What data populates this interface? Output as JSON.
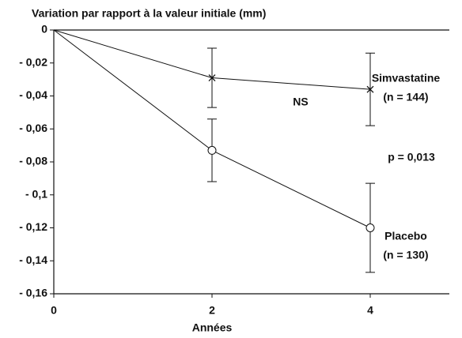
{
  "chart_data": {
    "type": "line",
    "title": "Variation par rapport à la valeur initiale (mm)",
    "x_label": "Années",
    "xlim": [
      0,
      5
    ],
    "xticks": [
      0,
      2,
      4
    ],
    "ylim": [
      -0.16,
      0
    ],
    "yticks": [
      {
        "value": 0,
        "label": "0"
      },
      {
        "value": -0.02,
        "label": "- 0,02"
      },
      {
        "value": -0.04,
        "label": "- 0,04"
      },
      {
        "value": -0.06,
        "label": "- 0,06"
      },
      {
        "value": -0.08,
        "label": "- 0,08"
      },
      {
        "value": -0.1,
        "label": "- 0,1"
      },
      {
        "value": -0.12,
        "label": "- 0,12"
      },
      {
        "value": -0.14,
        "label": "- 0,14"
      },
      {
        "value": -0.16,
        "label": "- 0,16"
      }
    ],
    "color": "#111111",
    "series": [
      {
        "name": "Simvastatine",
        "marker": "x",
        "x": [
          0,
          2,
          4
        ],
        "values": [
          0,
          -0.029,
          -0.036
        ],
        "errors": [
          null,
          0.018,
          0.022
        ]
      },
      {
        "name": "Placebo",
        "marker": "o",
        "x": [
          0,
          2,
          4
        ],
        "values": [
          0,
          -0.073,
          -0.12
        ],
        "errors": [
          null,
          0.019,
          0.027
        ]
      }
    ],
    "annotations": [
      "(n = 144)",
      "(n = 130)",
      "NS",
      "p = 0,013"
    ]
  }
}
